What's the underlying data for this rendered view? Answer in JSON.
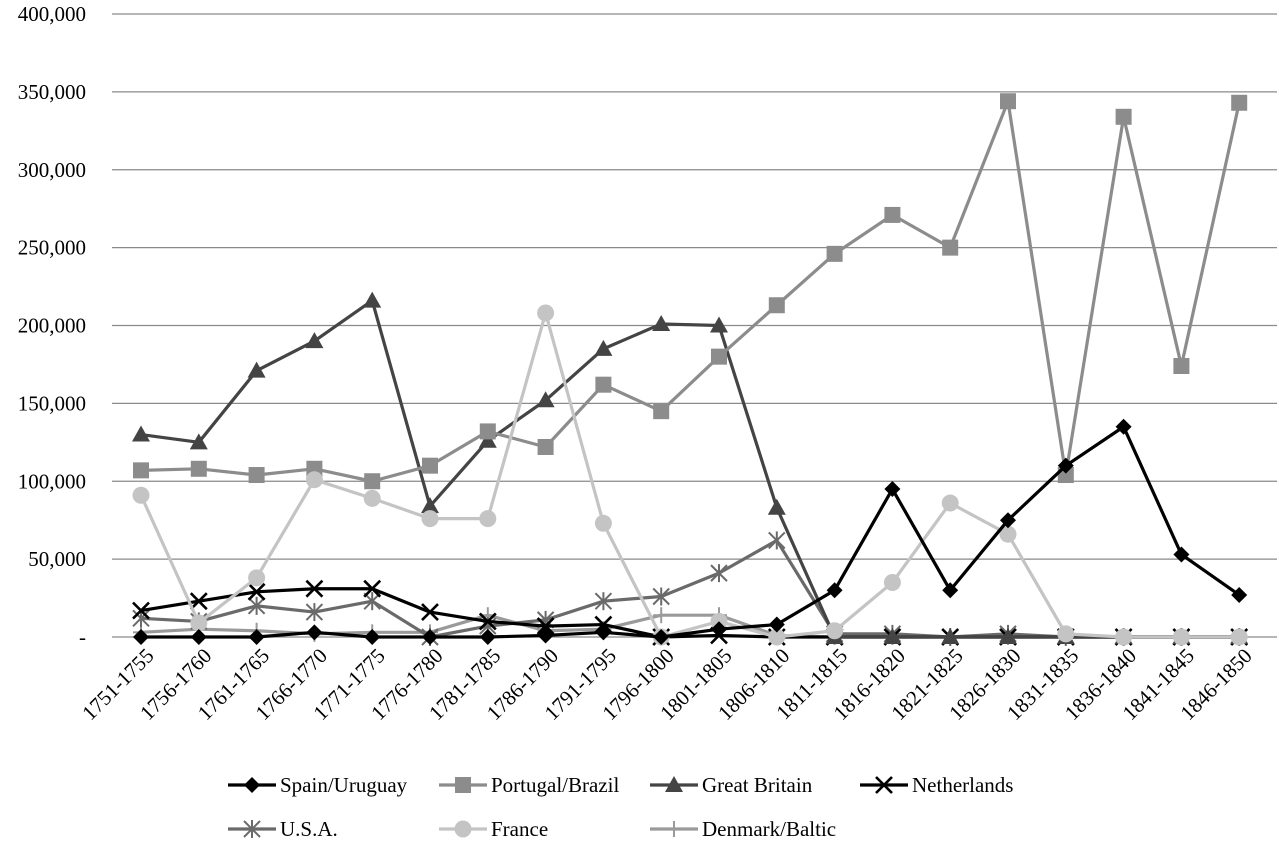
{
  "chart_data": {
    "type": "line",
    "title": "",
    "xlabel": "",
    "ylabel": "",
    "ylim": [
      0,
      400000
    ],
    "yticks": [
      0,
      50000,
      100000,
      150000,
      200000,
      250000,
      300000,
      350000,
      400000
    ],
    "ytick_labels": [
      "-",
      "50,000",
      "100,000",
      "150,000",
      "200,000",
      "250,000",
      "300,000",
      "350,000",
      "400,000"
    ],
    "grid": "horizontal",
    "legend_position": "bottom",
    "categories": [
      "1751-1755",
      "1756-1760",
      "1761-1765",
      "1766-1770",
      "1771-1775",
      "1776-1780",
      "1781-1785",
      "1786-1790",
      "1791-1795",
      "1796-1800",
      "1801-1805",
      "1806-1810",
      "1811-1815",
      "1816-1820",
      "1821-1825",
      "1826-1830",
      "1831-1835",
      "1836-1840",
      "1841-1845",
      "1846-1850"
    ],
    "series": [
      {
        "name": "Spain/Uruguay",
        "color": "#000000",
        "marker": "diamond",
        "values": [
          0,
          0,
          0,
          3000,
          0,
          0,
          0,
          1000,
          3000,
          0,
          5000,
          8000,
          30000,
          95000,
          30000,
          75000,
          110000,
          135000,
          53000,
          27000
        ]
      },
      {
        "name": "Portugal/Brazil",
        "color": "#8c8c8c",
        "marker": "square",
        "values": [
          107000,
          108000,
          104000,
          108000,
          100000,
          110000,
          132000,
          122000,
          162000,
          145000,
          180000,
          213000,
          246000,
          271000,
          250000,
          344000,
          104000,
          334000,
          174000,
          343000
        ]
      },
      {
        "name": "Great Britain",
        "color": "#444444",
        "marker": "triangle",
        "values": [
          130000,
          125000,
          171000,
          190000,
          216000,
          84000,
          126000,
          152000,
          185000,
          201000,
          200000,
          83000,
          0,
          0,
          0,
          0,
          0,
          0,
          0,
          0
        ]
      },
      {
        "name": "Netherlands",
        "color": "#000000",
        "marker": "x",
        "values": [
          17000,
          23000,
          29000,
          31000,
          31000,
          16000,
          10000,
          7000,
          8000,
          0,
          1000,
          0,
          0,
          0,
          0,
          0,
          0,
          0,
          0,
          0
        ]
      },
      {
        "name": "U.S.A.",
        "color": "#6a6a6a",
        "marker": "star",
        "values": [
          12000,
          10000,
          20000,
          16000,
          23000,
          0,
          7000,
          11000,
          23000,
          26000,
          41000,
          62000,
          2000,
          2000,
          0,
          2000,
          0,
          0,
          0,
          0
        ]
      },
      {
        "name": "France",
        "color": "#c4c4c4",
        "marker": "circle",
        "values": [
          91000,
          9000,
          38000,
          101000,
          89000,
          76000,
          76000,
          208000,
          73000,
          0,
          10000,
          0,
          4000,
          35000,
          86000,
          66000,
          2000,
          0,
          0,
          0
        ]
      },
      {
        "name": "Denmark/Baltic",
        "color": "#9a9a9a",
        "marker": "plus",
        "values": [
          3000,
          5000,
          4000,
          2000,
          3000,
          3000,
          14000,
          4000,
          5000,
          14000,
          14000,
          1000,
          0,
          0,
          0,
          0,
          0,
          0,
          0,
          0
        ]
      }
    ]
  }
}
